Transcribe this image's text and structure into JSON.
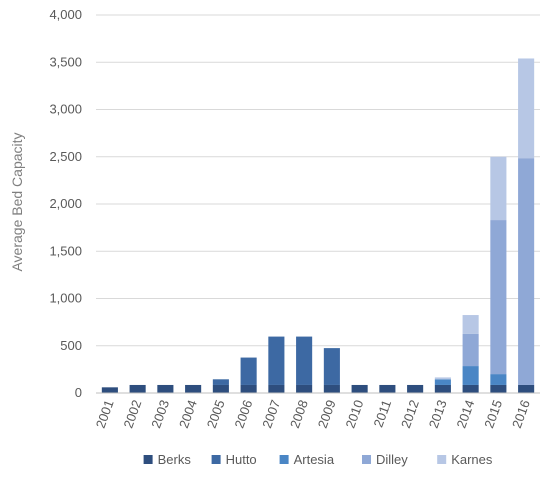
{
  "chart_data": {
    "type": "bar",
    "stacked": true,
    "ylabel": "Average Bed Capacity",
    "ylim": [
      0,
      4000
    ],
    "y_ticks": [
      "0",
      "500",
      "1,000",
      "1,500",
      "2,000",
      "2,500",
      "3,000",
      "3,500",
      "4,000"
    ],
    "y_tick_values": [
      0,
      500,
      1000,
      1500,
      2000,
      2500,
      3000,
      3500,
      4000
    ],
    "grid": true,
    "legend_position": "bottom",
    "categories": [
      "2001",
      "2002",
      "2003",
      "2004",
      "2005",
      "2006",
      "2007",
      "2008",
      "2009",
      "2010",
      "2011",
      "2012",
      "2013",
      "2014",
      "2015",
      "2016"
    ],
    "series": [
      {
        "name": "Berks",
        "color": "#2e4e7e",
        "values": [
          60,
          85,
          85,
          85,
          85,
          85,
          85,
          85,
          85,
          85,
          85,
          85,
          85,
          85,
          85,
          85
        ]
      },
      {
        "name": "Hutto",
        "color": "#3d69a3",
        "values": [
          0,
          0,
          0,
          0,
          60,
          290,
          512,
          512,
          390,
          0,
          0,
          0,
          0,
          0,
          0,
          0
        ]
      },
      {
        "name": "Artesia",
        "color": "#4a86c5",
        "values": [
          0,
          0,
          0,
          0,
          0,
          0,
          0,
          0,
          0,
          0,
          0,
          0,
          60,
          200,
          115,
          0
        ]
      },
      {
        "name": "Dilley",
        "color": "#8fa8d6",
        "values": [
          0,
          0,
          0,
          0,
          0,
          0,
          0,
          0,
          0,
          0,
          0,
          0,
          0,
          340,
          1630,
          2400
        ]
      },
      {
        "name": "Karnes",
        "color": "#b7c7e5",
        "values": [
          0,
          0,
          0,
          0,
          0,
          0,
          0,
          0,
          0,
          0,
          0,
          0,
          20,
          200,
          670,
          1055
        ]
      }
    ]
  }
}
